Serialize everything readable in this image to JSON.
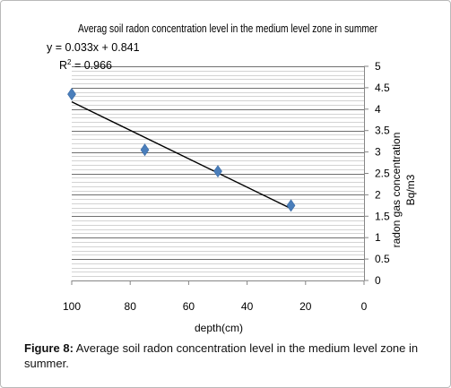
{
  "chart_data": {
    "type": "scatter",
    "title": "Averag soil radon concentration level in the medium level zone in summer",
    "xlabel": "depth(cm)",
    "ylabel_line1": "radon gas concentration",
    "ylabel_line2": "Bq/m3",
    "x_reversed": true,
    "xlim": [
      0,
      100
    ],
    "ylim": [
      0,
      5
    ],
    "x_ticks": [
      "100",
      "80",
      "60",
      "40",
      "20",
      "0"
    ],
    "y_ticks": [
      "0",
      "0.5",
      "1",
      "1.5",
      "2",
      "2.5",
      "3",
      "3.5",
      "4",
      "4.5",
      "5"
    ],
    "x_tick_values": [
      100,
      80,
      60,
      40,
      20,
      0
    ],
    "y_tick_values": [
      0,
      0.5,
      1,
      1.5,
      2,
      2.5,
      3,
      3.5,
      4,
      4.5,
      5
    ],
    "series": [
      {
        "x": [
          100,
          75,
          50,
          25
        ],
        "y": [
          4.35,
          3.05,
          2.55,
          1.75
        ],
        "color": "#4a7ebb"
      }
    ],
    "trendline": {
      "equation": "y = 0.033x + 0.841",
      "r2_prefix": "R",
      "r2_sup": "2",
      "r2_suffix": " = 0.966",
      "slope": 0.033,
      "intercept": 0.841,
      "color": "#000000"
    },
    "grid": "horizontal minor",
    "legend": "none"
  },
  "caption": {
    "label": "Figure 8:",
    "text": " Average soil radon concentration level in the medium level zone in summer."
  }
}
